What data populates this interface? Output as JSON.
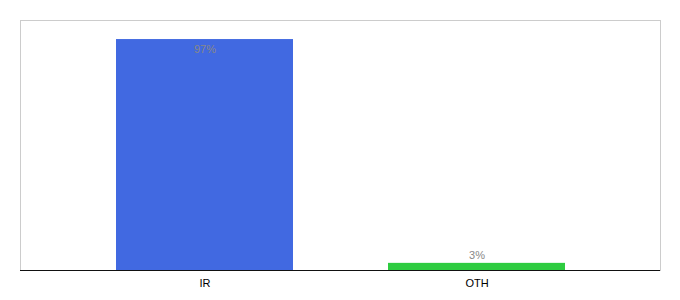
{
  "chart_data": {
    "type": "bar",
    "categories": [
      "IR",
      "OTH"
    ],
    "values": [
      97,
      3
    ],
    "value_labels": [
      "97%",
      "3%"
    ],
    "colors": [
      "#4169e1",
      "#2ecc40"
    ],
    "ylim": [
      0,
      105
    ],
    "data_labels": true,
    "tick_labels": "x",
    "grid": false
  }
}
